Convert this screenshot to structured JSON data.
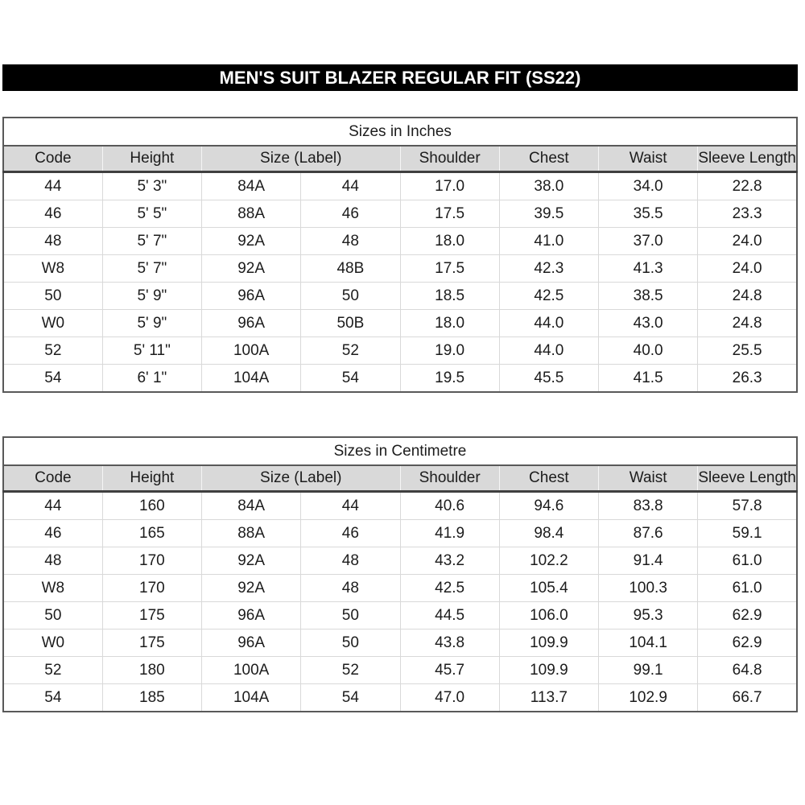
{
  "title_bar": "MEN'S SUIT BLAZER REGULAR FIT (SS22)",
  "colors": {
    "title_bar_bg": "#000000",
    "title_bar_text": "#ffffff",
    "header_bg": "#d9d9d9",
    "dark_border": "#595959",
    "light_grid": "#d9d9d9"
  },
  "tables": [
    {
      "title": "Sizes in Inches",
      "headers": [
        {
          "label": "Code",
          "span": 1
        },
        {
          "label": "Height",
          "span": 1
        },
        {
          "label": "Size (Label)",
          "span": 2
        },
        {
          "label": "Shoulder",
          "span": 1
        },
        {
          "label": "Chest",
          "span": 1
        },
        {
          "label": "Waist",
          "span": 1
        },
        {
          "label": "Sleeve Length",
          "span": 1
        }
      ],
      "rows": [
        [
          "44",
          "5' 3\"",
          "84A",
          "44",
          "17.0",
          "38.0",
          "34.0",
          "22.8"
        ],
        [
          "46",
          "5' 5\"",
          "88A",
          "46",
          "17.5",
          "39.5",
          "35.5",
          "23.3"
        ],
        [
          "48",
          "5' 7\"",
          "92A",
          "48",
          "18.0",
          "41.0",
          "37.0",
          "24.0"
        ],
        [
          "W8",
          "5' 7\"",
          "92A",
          "48B",
          "17.5",
          "42.3",
          "41.3",
          "24.0"
        ],
        [
          "50",
          "5' 9\"",
          "96A",
          "50",
          "18.5",
          "42.5",
          "38.5",
          "24.8"
        ],
        [
          "W0",
          "5' 9\"",
          "96A",
          "50B",
          "18.0",
          "44.0",
          "43.0",
          "24.8"
        ],
        [
          "52",
          "5' 11\"",
          "100A",
          "52",
          "19.0",
          "44.0",
          "40.0",
          "25.5"
        ],
        [
          "54",
          "6' 1\"",
          "104A",
          "54",
          "19.5",
          "45.5",
          "41.5",
          "26.3"
        ]
      ]
    },
    {
      "title": "Sizes in Centimetre",
      "headers": [
        {
          "label": "Code",
          "span": 1
        },
        {
          "label": "Height",
          "span": 1
        },
        {
          "label": "Size (Label)",
          "span": 2
        },
        {
          "label": "Shoulder",
          "span": 1
        },
        {
          "label": "Chest",
          "span": 1
        },
        {
          "label": "Waist",
          "span": 1
        },
        {
          "label": "Sleeve Length",
          "span": 1
        }
      ],
      "rows": [
        [
          "44",
          "160",
          "84A",
          "44",
          "40.6",
          "94.6",
          "83.8",
          "57.8"
        ],
        [
          "46",
          "165",
          "88A",
          "46",
          "41.9",
          "98.4",
          "87.6",
          "59.1"
        ],
        [
          "48",
          "170",
          "92A",
          "48",
          "43.2",
          "102.2",
          "91.4",
          "61.0"
        ],
        [
          "W8",
          "170",
          "92A",
          "48",
          "42.5",
          "105.4",
          "100.3",
          "61.0"
        ],
        [
          "50",
          "175",
          "96A",
          "50",
          "44.5",
          "106.0",
          "95.3",
          "62.9"
        ],
        [
          "W0",
          "175",
          "96A",
          "50",
          "43.8",
          "109.9",
          "104.1",
          "62.9"
        ],
        [
          "52",
          "180",
          "100A",
          "52",
          "45.7",
          "109.9",
          "99.1",
          "64.8"
        ],
        [
          "54",
          "185",
          "104A",
          "54",
          "47.0",
          "113.7",
          "102.9",
          "66.7"
        ]
      ]
    }
  ]
}
